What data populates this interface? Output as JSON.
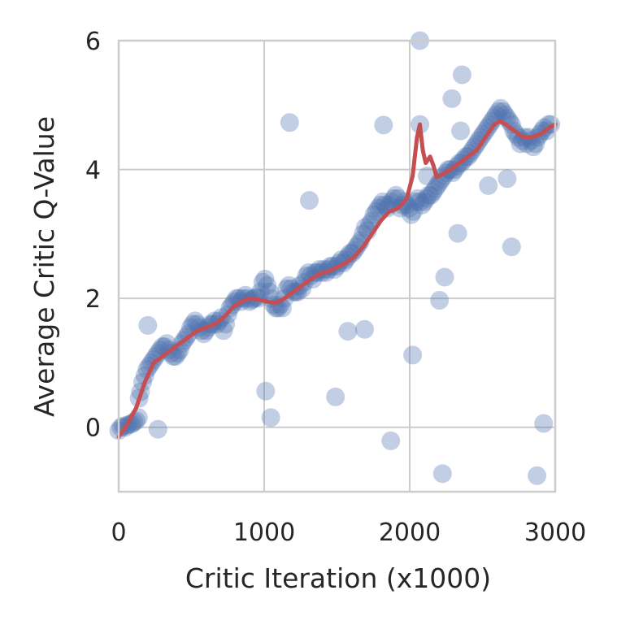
{
  "chart_data": {
    "type": "scatter",
    "title": "",
    "xlabel": "Critic Iteration (x1000)",
    "ylabel": "Average Critic Q-Value",
    "xlim": [
      0,
      3000
    ],
    "ylim": [
      -1,
      6
    ],
    "xticks": [
      0,
      1000,
      2000,
      3000
    ],
    "yticks": [
      0,
      2,
      4,
      6
    ],
    "xtick_labels": [
      "0",
      "1000",
      "2000",
      "3000"
    ],
    "ytick_labels": [
      "0",
      "2",
      "4",
      "6"
    ],
    "grid": true,
    "legend": "none",
    "colors": {
      "points": "#4c72b0",
      "trend": "#c44e52",
      "grid": "#cccccc",
      "frame": "#cccccc",
      "background": "#ffffff"
    },
    "series": [
      {
        "kind": "scatter",
        "points": [
          [
            0,
            -0.05
          ],
          [
            15,
            0.0
          ],
          [
            30,
            0.02
          ],
          [
            45,
            0.0
          ],
          [
            60,
            0.03
          ],
          [
            75,
            0.05
          ],
          [
            90,
            0.05
          ],
          [
            105,
            0.08
          ],
          [
            120,
            0.1
          ],
          [
            135,
            0.15
          ],
          [
            140,
            0.45
          ],
          [
            150,
            0.55
          ],
          [
            165,
            0.7
          ],
          [
            180,
            0.8
          ],
          [
            195,
            0.9
          ],
          [
            210,
            0.95
          ],
          [
            225,
            1.0
          ],
          [
            240,
            1.05
          ],
          [
            255,
            1.1
          ],
          [
            270,
            1.15
          ],
          [
            285,
            1.2
          ],
          [
            300,
            1.25
          ],
          [
            315,
            1.25
          ],
          [
            330,
            1.3
          ],
          [
            345,
            1.2
          ],
          [
            360,
            1.15
          ],
          [
            375,
            1.1
          ],
          [
            390,
            1.1
          ],
          [
            405,
            1.15
          ],
          [
            420,
            1.2
          ],
          [
            435,
            1.3
          ],
          [
            450,
            1.35
          ],
          [
            465,
            1.4
          ],
          [
            480,
            1.45
          ],
          [
            495,
            1.55
          ],
          [
            510,
            1.6
          ],
          [
            525,
            1.65
          ],
          [
            540,
            1.6
          ],
          [
            555,
            1.55
          ],
          [
            570,
            1.5
          ],
          [
            585,
            1.45
          ],
          [
            600,
            1.5
          ],
          [
            615,
            1.55
          ],
          [
            630,
            1.6
          ],
          [
            645,
            1.6
          ],
          [
            660,
            1.65
          ],
          [
            675,
            1.6
          ],
          [
            690,
            1.65
          ],
          [
            705,
            1.7
          ],
          [
            720,
            1.5
          ],
          [
            735,
            1.6
          ],
          [
            750,
            1.75
          ],
          [
            765,
            1.85
          ],
          [
            780,
            1.9
          ],
          [
            795,
            1.95
          ],
          [
            810,
            2.0
          ],
          [
            825,
            2.0
          ],
          [
            840,
            1.95
          ],
          [
            855,
            2.0
          ],
          [
            870,
            2.05
          ],
          [
            885,
            2.0
          ],
          [
            900,
            1.95
          ],
          [
            915,
            1.98
          ],
          [
            930,
            2.0
          ],
          [
            945,
            2.02
          ],
          [
            960,
            2.0
          ],
          [
            975,
            2.1
          ],
          [
            990,
            2.25
          ],
          [
            1005,
            2.3
          ],
          [
            1020,
            2.2
          ],
          [
            1035,
            2.1
          ],
          [
            1050,
            2.0
          ],
          [
            1065,
            1.9
          ],
          [
            1080,
            1.85
          ],
          [
            1095,
            1.85
          ],
          [
            1110,
            1.9
          ],
          [
            1125,
            1.85
          ],
          [
            1140,
            2.0
          ],
          [
            1155,
            2.15
          ],
          [
            1170,
            2.2
          ],
          [
            1185,
            2.15
          ],
          [
            1200,
            2.1
          ],
          [
            1215,
            2.1
          ],
          [
            1230,
            2.1
          ],
          [
            1245,
            2.2
          ],
          [
            1260,
            2.15
          ],
          [
            1275,
            2.25
          ],
          [
            1290,
            2.35
          ],
          [
            1305,
            2.4
          ],
          [
            1320,
            2.35
          ],
          [
            1335,
            2.3
          ],
          [
            1350,
            2.4
          ],
          [
            1365,
            2.4
          ],
          [
            1380,
            2.45
          ],
          [
            1395,
            2.4
          ],
          [
            1410,
            2.45
          ],
          [
            1425,
            2.4
          ],
          [
            1440,
            2.45
          ],
          [
            1455,
            2.5
          ],
          [
            1470,
            2.5
          ],
          [
            1485,
            2.45
          ],
          [
            1500,
            2.5
          ],
          [
            1515,
            2.55
          ],
          [
            1530,
            2.6
          ],
          [
            1545,
            2.55
          ],
          [
            1560,
            2.6
          ],
          [
            1575,
            2.65
          ],
          [
            1590,
            2.7
          ],
          [
            1605,
            2.7
          ],
          [
            1620,
            2.75
          ],
          [
            1635,
            2.8
          ],
          [
            1650,
            2.85
          ],
          [
            1665,
            2.9
          ],
          [
            1680,
            3.0
          ],
          [
            1695,
            3.1
          ],
          [
            1710,
            3.05
          ],
          [
            1725,
            3.15
          ],
          [
            1740,
            3.2
          ],
          [
            1755,
            3.3
          ],
          [
            1770,
            3.35
          ],
          [
            1785,
            3.4
          ],
          [
            1800,
            3.45
          ],
          [
            1815,
            3.5
          ],
          [
            1830,
            3.45
          ],
          [
            1845,
            3.4
          ],
          [
            1860,
            3.45
          ],
          [
            1875,
            3.5
          ],
          [
            1890,
            3.55
          ],
          [
            1905,
            3.6
          ],
          [
            1920,
            3.55
          ],
          [
            1935,
            3.4
          ],
          [
            1950,
            3.45
          ],
          [
            1965,
            3.5
          ],
          [
            1980,
            3.45
          ],
          [
            1995,
            3.4
          ],
          [
            2010,
            3.3
          ],
          [
            2025,
            3.35
          ],
          [
            2040,
            3.5
          ],
          [
            2055,
            3.55
          ],
          [
            2070,
            3.5
          ],
          [
            2085,
            3.45
          ],
          [
            2100,
            3.5
          ],
          [
            2115,
            3.55
          ],
          [
            2130,
            3.6
          ],
          [
            2145,
            3.6
          ],
          [
            2160,
            3.65
          ],
          [
            2175,
            3.7
          ],
          [
            2190,
            3.75
          ],
          [
            2205,
            3.8
          ],
          [
            2220,
            3.85
          ],
          [
            2235,
            3.9
          ],
          [
            2250,
            3.95
          ],
          [
            2265,
            4.0
          ],
          [
            2280,
            4.0
          ],
          [
            2295,
            3.95
          ],
          [
            2310,
            4.0
          ],
          [
            2325,
            4.05
          ],
          [
            2340,
            4.1
          ],
          [
            2355,
            4.1
          ],
          [
            2370,
            4.15
          ],
          [
            2385,
            4.2
          ],
          [
            2400,
            4.2
          ],
          [
            2415,
            4.25
          ],
          [
            2430,
            4.3
          ],
          [
            2445,
            4.35
          ],
          [
            2460,
            4.4
          ],
          [
            2475,
            4.45
          ],
          [
            2490,
            4.5
          ],
          [
            2505,
            4.55
          ],
          [
            2520,
            4.6
          ],
          [
            2535,
            4.65
          ],
          [
            2550,
            4.7
          ],
          [
            2565,
            4.75
          ],
          [
            2580,
            4.8
          ],
          [
            2595,
            4.85
          ],
          [
            2610,
            4.9
          ],
          [
            2625,
            4.95
          ],
          [
            2640,
            4.9
          ],
          [
            2655,
            4.85
          ],
          [
            2670,
            4.8
          ],
          [
            2685,
            4.75
          ],
          [
            2700,
            4.7
          ],
          [
            2715,
            4.6
          ],
          [
            2730,
            4.55
          ],
          [
            2745,
            4.5
          ],
          [
            2760,
            4.4
          ],
          [
            2775,
            4.45
          ],
          [
            2790,
            4.5
          ],
          [
            2805,
            4.4
          ],
          [
            2820,
            4.5
          ],
          [
            2835,
            4.45
          ],
          [
            2850,
            4.35
          ],
          [
            2865,
            4.4
          ],
          [
            2880,
            4.5
          ],
          [
            2895,
            4.55
          ],
          [
            2910,
            4.6
          ],
          [
            2925,
            4.65
          ],
          [
            2940,
            4.6
          ],
          [
            2955,
            4.7
          ],
          [
            2970,
            4.7
          ],
          [
            200,
            1.58
          ],
          [
            270,
            -0.03
          ],
          [
            1010,
            0.56
          ],
          [
            1045,
            0.15
          ],
          [
            1175,
            4.73
          ],
          [
            1310,
            3.52
          ],
          [
            1490,
            0.47
          ],
          [
            1575,
            1.49
          ],
          [
            1690,
            1.52
          ],
          [
            1820,
            4.69
          ],
          [
            1870,
            -0.21
          ],
          [
            2020,
            1.12
          ],
          [
            2070,
            6.0
          ],
          [
            2070,
            4.7
          ],
          [
            2120,
            3.9
          ],
          [
            2205,
            1.97
          ],
          [
            2225,
            -0.72
          ],
          [
            2240,
            2.33
          ],
          [
            2290,
            5.1
          ],
          [
            2330,
            3.01
          ],
          [
            2350,
            4.6
          ],
          [
            2360,
            5.47
          ],
          [
            2540,
            3.75
          ],
          [
            2670,
            3.86
          ],
          [
            2700,
            2.8
          ],
          [
            2875,
            -0.75
          ],
          [
            2920,
            0.06
          ]
        ]
      },
      {
        "kind": "line",
        "points": [
          [
            0,
            -0.15
          ],
          [
            60,
            0.05
          ],
          [
            120,
            0.3
          ],
          [
            180,
            0.7
          ],
          [
            240,
            1.0
          ],
          [
            300,
            1.1
          ],
          [
            360,
            1.2
          ],
          [
            420,
            1.3
          ],
          [
            480,
            1.4
          ],
          [
            540,
            1.5
          ],
          [
            600,
            1.55
          ],
          [
            660,
            1.6
          ],
          [
            720,
            1.7
          ],
          [
            780,
            1.85
          ],
          [
            840,
            1.95
          ],
          [
            900,
            2.0
          ],
          [
            960,
            1.98
          ],
          [
            1020,
            1.95
          ],
          [
            1080,
            1.93
          ],
          [
            1140,
            2.0
          ],
          [
            1200,
            2.1
          ],
          [
            1260,
            2.2
          ],
          [
            1320,
            2.3
          ],
          [
            1380,
            2.38
          ],
          [
            1440,
            2.42
          ],
          [
            1500,
            2.48
          ],
          [
            1560,
            2.55
          ],
          [
            1620,
            2.65
          ],
          [
            1680,
            2.8
          ],
          [
            1740,
            3.0
          ],
          [
            1800,
            3.2
          ],
          [
            1860,
            3.35
          ],
          [
            1920,
            3.4
          ],
          [
            1980,
            3.55
          ],
          [
            2020,
            3.9
          ],
          [
            2050,
            4.5
          ],
          [
            2070,
            4.7
          ],
          [
            2090,
            4.3
          ],
          [
            2110,
            4.1
          ],
          [
            2140,
            4.2
          ],
          [
            2165,
            4.05
          ],
          [
            2185,
            3.88
          ],
          [
            2220,
            3.92
          ],
          [
            2280,
            4.0
          ],
          [
            2340,
            4.1
          ],
          [
            2400,
            4.2
          ],
          [
            2460,
            4.3
          ],
          [
            2520,
            4.5
          ],
          [
            2580,
            4.7
          ],
          [
            2620,
            4.75
          ],
          [
            2660,
            4.7
          ],
          [
            2720,
            4.6
          ],
          [
            2780,
            4.5
          ],
          [
            2840,
            4.5
          ],
          [
            2900,
            4.55
          ],
          [
            2960,
            4.65
          ],
          [
            3000,
            4.7
          ]
        ]
      }
    ]
  }
}
